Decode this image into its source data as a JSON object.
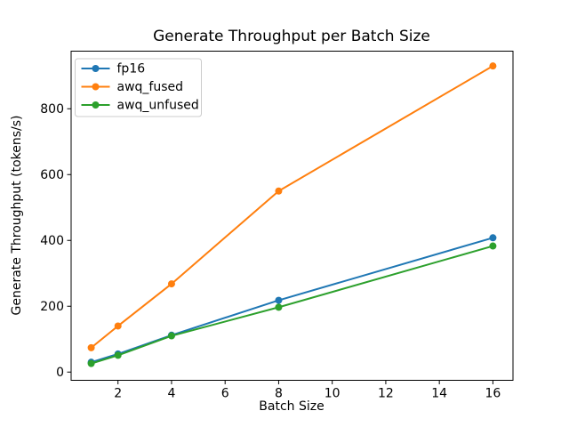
{
  "chart_data": {
    "type": "line",
    "title": "Generate Throughput per Batch Size",
    "xlabel": "Batch Size",
    "ylabel": "Generate Throughput (tokens/s)",
    "x": [
      1,
      2,
      4,
      8,
      16
    ],
    "series": [
      {
        "name": "fp16",
        "color": "#1f77b4",
        "values": [
          30,
          55,
          112,
          218,
          408
        ]
      },
      {
        "name": "awq_fused",
        "color": "#ff7f0e",
        "values": [
          74,
          140,
          268,
          550,
          930
        ]
      },
      {
        "name": "awq_unfused",
        "color": "#2ca02c",
        "values": [
          26,
          51,
          110,
          197,
          383
        ]
      }
    ],
    "xticks": [
      2,
      4,
      6,
      8,
      10,
      12,
      14,
      16
    ],
    "yticks": [
      0,
      200,
      400,
      600,
      800
    ],
    "xlim": [
      0.25,
      16.75
    ],
    "ylim": [
      -25,
      975
    ],
    "grid": false,
    "marker": "o",
    "legend": {
      "position": "upper left",
      "border_color": "#cccccc",
      "background": "#ffffff"
    },
    "axes": {
      "spine_color": "#000000",
      "tick_color": "#000000",
      "background": "#ffffff"
    }
  }
}
